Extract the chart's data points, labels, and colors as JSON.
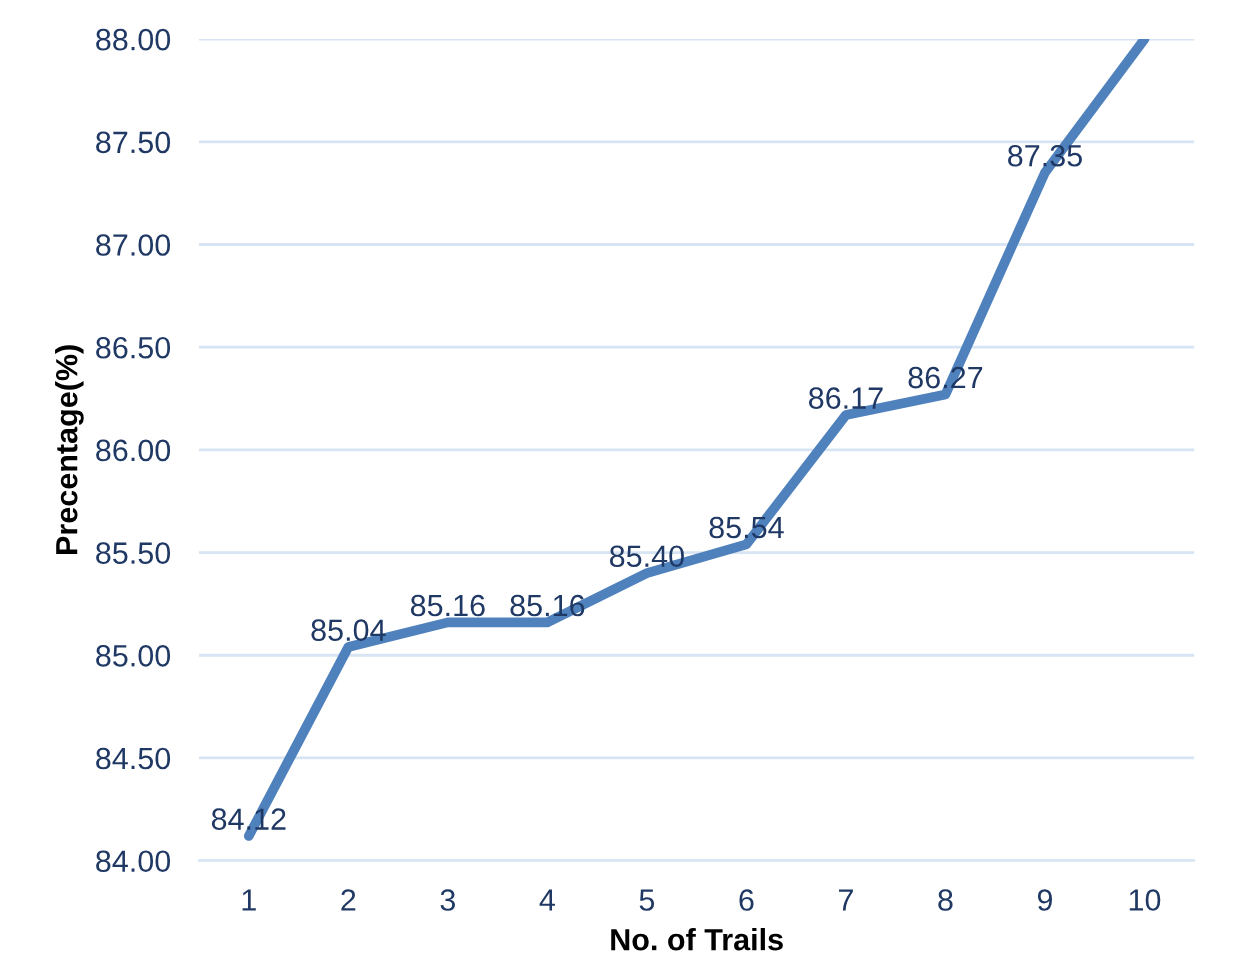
{
  "chart_data": {
    "type": "line",
    "xlabel": "No. of Trails",
    "ylabel": "Precentage(%)",
    "categories": [
      "1",
      "2",
      "3",
      "4",
      "5",
      "6",
      "7",
      "8",
      "9",
      "10"
    ],
    "series": [
      {
        "color": "#4f81bd",
        "values": [
          84.12,
          85.04,
          85.16,
          85.16,
          85.4,
          85.54,
          86.17,
          86.27,
          87.35,
          88.0
        ],
        "value_labels": [
          "84.12",
          "85.04",
          "85.16",
          "85.16",
          "85.40",
          "85.54",
          "86.17",
          "86.27",
          "87.35",
          null
        ]
      }
    ],
    "ylim": [
      84.0,
      88.0
    ],
    "yticks": [
      {
        "value": 84.0,
        "label": "84.00"
      },
      {
        "value": 84.5,
        "label": "84.50"
      },
      {
        "value": 85.0,
        "label": "85.00"
      },
      {
        "value": 85.5,
        "label": "85.50"
      },
      {
        "value": 86.0,
        "label": "86.00"
      },
      {
        "value": 86.5,
        "label": "86.50"
      },
      {
        "value": 87.0,
        "label": "87.00"
      },
      {
        "value": 87.5,
        "label": "87.50"
      },
      {
        "value": 88.0,
        "label": "88.00"
      }
    ],
    "grid": "y",
    "legend": false,
    "marker": "none",
    "line_style": "solid"
  }
}
